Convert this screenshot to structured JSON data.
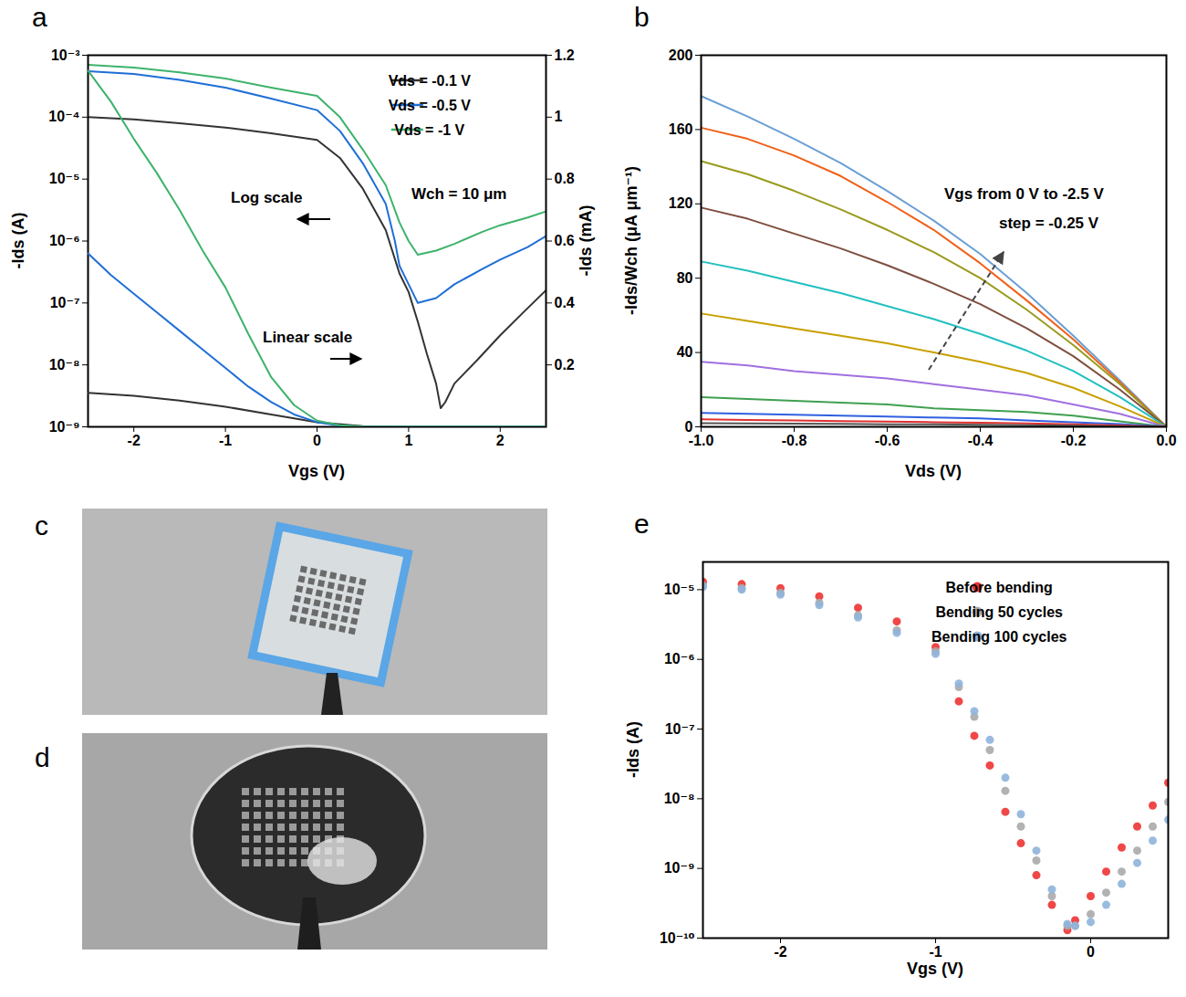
{
  "chart_data": [
    {
      "panel": "a",
      "type": "line",
      "log": "y",
      "x_label": "Vgs (V)",
      "y_label": "-Ids (A)",
      "y2_label": "-Ids (mA)",
      "xlim": [
        -2.5,
        2.5
      ],
      "xticks": [
        -2,
        -1,
        0,
        1,
        2
      ],
      "ylim": [
        1e-09,
        0.001
      ],
      "yticks": [
        {
          "value": 1e-09,
          "label": "10⁻⁹"
        },
        {
          "value": 1e-08,
          "label": "10⁻⁸"
        },
        {
          "value": 1e-07,
          "label": "10⁻⁷"
        },
        {
          "value": 1e-06,
          "label": "10⁻⁶"
        },
        {
          "value": 1e-05,
          "label": "10⁻⁵"
        },
        {
          "value": 0.0001,
          "label": "10⁻⁴"
        },
        {
          "value": 0.001,
          "label": "10⁻³"
        }
      ],
      "y2lim": [
        0,
        1.2
      ],
      "y2ticks": [
        0.2,
        0.4,
        0.6,
        0.8,
        1,
        1.2
      ],
      "legend": "top-right",
      "annotations": [
        "Wch = 10 μm",
        "Log scale",
        "Linear scale"
      ],
      "series": [
        {
          "name": "Vds = -0.1 V",
          "color": "#333333",
          "x": [
            -2.5,
            -2,
            -1.5,
            -1,
            -0.5,
            0,
            0.25,
            0.5,
            0.75,
            0.9,
            1,
            1.1,
            1.2,
            1.3,
            1.35,
            1.4,
            1.5,
            1.75,
            2,
            2.25,
            2.5
          ],
          "values": [
            0.0001,
            9.2e-05,
            8e-05,
            6.8e-05,
            5.5e-05,
            4.3e-05,
            2.2e-05,
            7e-06,
            1.5e-06,
            3e-07,
            1.5e-07,
            5e-08,
            1.5e-08,
            5e-09,
            2e-09,
            2.5e-09,
            5e-09,
            1.2e-08,
            3e-08,
            7e-08,
            1.6e-07
          ]
        },
        {
          "name": "Vds = -0.5 V",
          "color": "#1f6fd6",
          "x": [
            -2.5,
            -2,
            -1.5,
            -1,
            -0.5,
            0,
            0.25,
            0.5,
            0.75,
            0.85,
            0.9,
            1,
            1.1,
            1.3,
            1.5,
            1.8,
            2,
            2.3,
            2.5
          ],
          "values": [
            0.00055,
            0.0005,
            0.0004,
            0.0003,
            0.0002,
            0.00013,
            6e-05,
            1.8e-05,
            4e-06,
            1e-06,
            4e-07,
            2e-07,
            1e-07,
            1.2e-07,
            2e-07,
            3.5e-07,
            5e-07,
            8e-07,
            1.2e-06
          ]
        },
        {
          "name": "Vds = -1 V",
          "color": "#3db36b",
          "x": [
            -2.5,
            -2,
            -1.5,
            -1,
            -0.5,
            0,
            0.25,
            0.5,
            0.75,
            0.9,
            1,
            1.1,
            1.3,
            1.5,
            1.8,
            2,
            2.3,
            2.5
          ],
          "values": [
            0.0007,
            0.00063,
            0.00053,
            0.00042,
            0.0003,
            0.00022,
            0.0001,
            3e-05,
            8e-06,
            2e-06,
            1e-06,
            6e-07,
            7e-07,
            9e-07,
            1.4e-06,
            1.8e-06,
            2.4e-06,
            3e-06
          ]
        },
        {
          "name": "Vds = -0.1 V",
          "color": "#333333",
          "axis": "y2",
          "x": [
            -2.5,
            -2,
            -1.5,
            -1,
            -0.5,
            0,
            0.5,
            1,
            1.5,
            2,
            2.5
          ],
          "values": [
            0.11,
            0.1,
            0.085,
            0.065,
            0.04,
            0.015,
            0.002,
            0,
            0,
            0,
            0
          ]
        },
        {
          "name": "Vds = -0.5 V",
          "color": "#1f6fd6",
          "axis": "y2",
          "x": [
            -2.5,
            -2.25,
            -2,
            -1.75,
            -1.5,
            -1.25,
            -1,
            -0.75,
            -0.5,
            -0.25,
            0,
            0.25,
            0.5,
            1,
            1.5,
            2,
            2.5
          ],
          "values": [
            0.56,
            0.49,
            0.43,
            0.37,
            0.31,
            0.25,
            0.19,
            0.13,
            0.08,
            0.04,
            0.015,
            0.004,
            0.001,
            0,
            0,
            0,
            0
          ]
        },
        {
          "name": "Vds = -1 V",
          "color": "#3db36b",
          "axis": "y2",
          "x": [
            -2.5,
            -2.25,
            -2,
            -1.75,
            -1.5,
            -1.25,
            -1,
            -0.75,
            -0.5,
            -0.25,
            0,
            0.25,
            0.5,
            1,
            1.5,
            2,
            2.5
          ],
          "values": [
            1.15,
            1.05,
            0.93,
            0.82,
            0.7,
            0.57,
            0.45,
            0.3,
            0.16,
            0.07,
            0.02,
            0.005,
            0.001,
            0,
            0,
            0,
            0
          ]
        }
      ]
    },
    {
      "panel": "b",
      "type": "line",
      "x_label": "Vds (V)",
      "y_label": "-Ids/Wch (μA μm⁻¹)",
      "xlim": [
        -1,
        0
      ],
      "xticks": [
        {
          "value": -1,
          "label": "-1.0"
        },
        -0.8,
        -0.6,
        -0.4,
        -0.2,
        {
          "value": 0,
          "label": "0.0"
        }
      ],
      "ylim": [
        0,
        200
      ],
      "yticks": [
        0,
        40,
        80,
        120,
        160,
        200
      ],
      "annotations": [
        "Vgs from 0 V to -2.5 V",
        "step = -0.25 V"
      ],
      "x": [
        -1,
        -0.9,
        -0.8,
        -0.7,
        -0.6,
        -0.5,
        -0.4,
        -0.3,
        -0.2,
        -0.1,
        0
      ],
      "series": [
        {
          "color": "#6a9fd4",
          "values": [
            178,
            167,
            155,
            142,
            127,
            111,
            93,
            72,
            49,
            25,
            0
          ]
        },
        {
          "color": "#f06018",
          "values": [
            161,
            155,
            146,
            135,
            121,
            106,
            88,
            68,
            47,
            24,
            0
          ]
        },
        {
          "color": "#9a9a1e",
          "values": [
            143,
            136,
            127,
            117,
            106,
            94,
            80,
            63,
            44,
            23,
            0
          ]
        },
        {
          "color": "#7f4f3f",
          "values": [
            118,
            112,
            104,
            96,
            87,
            77,
            66,
            53,
            38,
            20,
            0
          ]
        },
        {
          "color": "#22c0c0",
          "values": [
            89,
            84,
            78,
            72,
            65,
            58,
            50,
            41,
            30,
            16,
            0
          ]
        },
        {
          "color": "#c8a000",
          "values": [
            61,
            57,
            53,
            49,
            45,
            40,
            35,
            29,
            21,
            11,
            0
          ]
        },
        {
          "color": "#a070e0",
          "values": [
            35,
            33,
            30,
            28,
            26,
            23,
            20,
            17,
            12,
            7,
            0
          ]
        },
        {
          "color": "#3fa050",
          "values": [
            16,
            15,
            14,
            13,
            12,
            10,
            9,
            8,
            6,
            3,
            0
          ]
        },
        {
          "color": "#3060e0",
          "values": [
            7.5,
            7,
            6.5,
            6,
            5.5,
            5,
            4.5,
            3.5,
            2.5,
            1.5,
            0
          ]
        },
        {
          "color": "#e03030",
          "values": [
            4,
            3.7,
            3.4,
            3.1,
            2.8,
            2.5,
            2.2,
            1.8,
            1.3,
            0.7,
            0
          ]
        },
        {
          "color": "#555555",
          "values": [
            2,
            1.9,
            1.7,
            1.6,
            1.4,
            1.3,
            1.1,
            0.9,
            0.6,
            0.3,
            0
          ]
        }
      ]
    },
    {
      "panel": "c",
      "type": "photo"
    },
    {
      "panel": "d",
      "type": "photo"
    },
    {
      "panel": "e",
      "type": "scatter",
      "marker": "circle",
      "log": "y",
      "x_label": "Vgs (V)",
      "y_label": "-Ids (A)",
      "xlim": [
        -2.5,
        0.5
      ],
      "xticks": [
        -2,
        -1,
        0
      ],
      "ylim": [
        1e-10,
        2.5e-05
      ],
      "yticks": [
        {
          "value": 1e-10,
          "label": "10⁻¹⁰"
        },
        {
          "value": 1e-09,
          "label": "10⁻⁹"
        },
        {
          "value": 1e-08,
          "label": "10⁻⁸"
        },
        {
          "value": 1e-07,
          "label": "10⁻⁷"
        },
        {
          "value": 1e-06,
          "label": "10⁻⁶"
        },
        {
          "value": 1e-05,
          "label": "10⁻⁵"
        }
      ],
      "legend": "top-right",
      "x": [
        -2.5,
        -2.25,
        -2,
        -1.75,
        -1.5,
        -1.25,
        -1,
        -0.85,
        -0.75,
        -0.65,
        -0.55,
        -0.45,
        -0.35,
        -0.25,
        -0.15,
        -0.1,
        0,
        0.1,
        0.2,
        0.3,
        0.4,
        0.5
      ],
      "series": [
        {
          "name": "Before bending",
          "color": "#ee3333",
          "values": [
            1.3e-05,
            1.2e-05,
            1.05e-05,
            8e-06,
            5.5e-06,
            3.5e-06,
            1.5e-06,
            2.5e-07,
            8e-08,
            3e-08,
            6.5e-09,
            2.3e-09,
            8e-10,
            3e-10,
            1.3e-10,
            1.8e-10,
            4e-10,
            9e-10,
            2e-09,
            4e-09,
            8e-09,
            1.7e-08
          ]
        },
        {
          "name": "Bending 50 cycles",
          "color": "#aaaaaa",
          "values": [
            1.15e-05,
            1.05e-05,
            9e-06,
            6.5e-06,
            4.3e-06,
            2.6e-06,
            1.3e-06,
            4e-07,
            1.5e-07,
            5e-08,
            1.3e-08,
            4e-09,
            1.3e-09,
            4e-10,
            1.5e-10,
            1.5e-10,
            2.2e-10,
            4.5e-10,
            9e-10,
            1.8e-09,
            4e-09,
            9e-09
          ]
        },
        {
          "name": "Bending 100 cycles",
          "color": "#8fb4dc",
          "values": [
            1.1e-05,
            1e-05,
            8.5e-06,
            6e-06,
            4e-06,
            2.4e-06,
            1.2e-06,
            4.5e-07,
            1.8e-07,
            7e-08,
            2e-08,
            6e-09,
            1.8e-09,
            5e-10,
            1.6e-10,
            1.5e-10,
            1.7e-10,
            3e-10,
            6e-10,
            1.2e-09,
            2.5e-09,
            5e-09
          ]
        }
      ]
    }
  ]
}
